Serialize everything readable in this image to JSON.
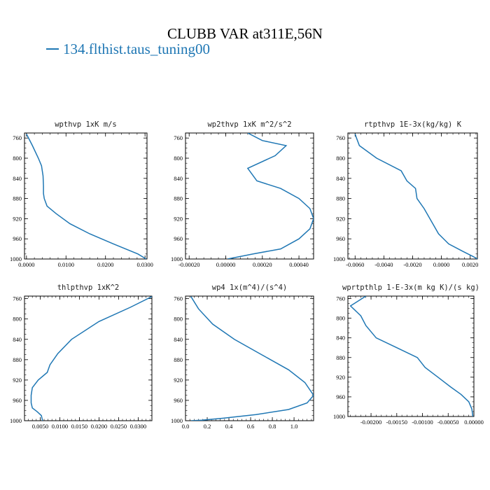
{
  "title": "CLUBB VAR at311E,56N",
  "legend": {
    "label": "134.flthist.taus_tuning00",
    "color": "#1f77b4"
  },
  "chart_data": [
    {
      "type": "line",
      "title": "wpthvp  1xK m/s",
      "xlim": [
        -0.0005,
        0.0305
      ],
      "ylim": [
        1000,
        750
      ],
      "xticks": [
        "0.0000",
        "0.0100",
        "0.0200",
        "0.0300"
      ],
      "xtick_values": [
        0.0,
        0.01,
        0.02,
        0.03
      ],
      "yticks": [
        760,
        800,
        840,
        880,
        920,
        960,
        1000
      ],
      "x": [
        0.0,
        0.0015,
        0.003,
        0.0038,
        0.0042,
        0.0043,
        0.0043,
        0.0045,
        0.0052,
        0.0075,
        0.011,
        0.016,
        0.022,
        0.0282,
        0.0303
      ],
      "y": [
        752,
        775,
        800,
        815,
        835,
        855,
        870,
        880,
        895,
        910,
        930,
        950,
        970,
        990,
        1000
      ]
    },
    {
      "type": "line",
      "title": "wp2thvp  1xK m^2/s^2",
      "xlim": [
        -0.00022,
        0.00048
      ],
      "ylim": [
        1000,
        750
      ],
      "xticks": [
        "-0.00020",
        "0.00000",
        "0.00020",
        "0.00040"
      ],
      "xtick_values": [
        -0.0002,
        0.0,
        0.0002,
        0.0004
      ],
      "yticks": [
        760,
        800,
        840,
        880,
        920,
        960,
        1000
      ],
      "x": [
        0.00012,
        0.0002,
        0.00033,
        0.00027,
        0.00012,
        0.00017,
        0.0003,
        0.0004,
        0.00046,
        0.00048,
        0.00046,
        0.0004,
        0.0003,
        0.00015,
        1e-05
      ],
      "y": [
        750,
        765,
        775,
        795,
        820,
        845,
        860,
        880,
        900,
        920,
        940,
        960,
        980,
        990,
        1000
      ]
    },
    {
      "type": "line",
      "title": "rtpthvp  1E-3x(kg/kg) K",
      "xlim": [
        -0.0065,
        0.0025
      ],
      "ylim": [
        1000,
        750
      ],
      "xticks": [
        "-0.0060",
        "-0.0040",
        "-0.0020",
        "0.0000",
        "0.0020"
      ],
      "xtick_values": [
        -0.006,
        -0.004,
        -0.002,
        0.0,
        0.002
      ],
      "yticks": [
        760,
        800,
        840,
        880,
        920,
        960,
        1000
      ],
      "x": [
        -0.006,
        -0.0059,
        -0.0057,
        -0.0045,
        -0.0028,
        -0.0024,
        -0.0018,
        -0.0017,
        -0.0012,
        -0.0007,
        -0.0002,
        0.0005,
        0.0015,
        0.0022,
        0.0025
      ],
      "y": [
        752,
        760,
        775,
        800,
        825,
        845,
        860,
        880,
        900,
        925,
        950,
        970,
        985,
        995,
        1000
      ]
    },
    {
      "type": "line",
      "title": "thlpthvp  1xK^2",
      "xlim": [
        0.001,
        0.0335
      ],
      "ylim": [
        1000,
        755
      ],
      "xticks": [
        "0.0050",
        "0.0100",
        "0.0150",
        "0.0200",
        "0.0250",
        "0.0300"
      ],
      "xtick_values": [
        0.005,
        0.01,
        0.015,
        0.02,
        0.025,
        0.03
      ],
      "yticks": [
        760,
        800,
        840,
        880,
        920,
        960,
        1000
      ],
      "x": [
        0.0335,
        0.028,
        0.02,
        0.013,
        0.0095,
        0.0075,
        0.0068,
        0.0045,
        0.003,
        0.0027,
        0.0027,
        0.003,
        0.0042,
        0.0053,
        0.0056
      ],
      "y": [
        756,
        777,
        805,
        840,
        868,
        890,
        905,
        920,
        935,
        950,
        965,
        975,
        982,
        990,
        1000
      ]
    },
    {
      "type": "line",
      "title": "wp4  1x(m^4)/(s^4)",
      "xlim": [
        0.0,
        1.18
      ],
      "ylim": [
        1000,
        755
      ],
      "xticks": [
        "0.0",
        "0.2",
        "0.4",
        "0.6",
        "0.8",
        "1.0"
      ],
      "xtick_values": [
        0.0,
        0.2,
        0.4,
        0.6,
        0.8,
        1.0
      ],
      "yticks": [
        760,
        800,
        840,
        880,
        920,
        960,
        1000
      ],
      "x": [
        0.05,
        0.12,
        0.25,
        0.45,
        0.7,
        0.95,
        1.1,
        1.18,
        1.12,
        0.95,
        0.65,
        0.35,
        0.15,
        0.05
      ],
      "y": [
        756,
        780,
        810,
        840,
        870,
        900,
        925,
        950,
        965,
        978,
        988,
        995,
        999,
        1000
      ]
    },
    {
      "type": "line",
      "title": "wprtpthlp  1-E-3x(m kg K)/(s kg)",
      "xlim": [
        -0.00245,
        0.0
      ],
      "ylim": [
        1000,
        755
      ],
      "xticks": [
        "-0.00200",
        "-0.00150",
        "-0.00100",
        "-0.00050",
        "0.00000"
      ],
      "xtick_values": [
        -0.002,
        -0.0015,
        -0.001,
        -0.0005,
        0.0
      ],
      "yticks": [
        760,
        800,
        840,
        880,
        920,
        960,
        1000
      ],
      "x": [
        -0.0021,
        -0.0024,
        -0.0022,
        -0.0021,
        -0.0019,
        -0.0015,
        -0.0011,
        -0.00095,
        -0.0007,
        -0.00045,
        -0.00025,
        -0.0001,
        -4e-05,
        -2e-05
      ],
      "y": [
        755,
        775,
        795,
        815,
        840,
        860,
        880,
        900,
        920,
        940,
        955,
        970,
        985,
        1000
      ]
    }
  ]
}
